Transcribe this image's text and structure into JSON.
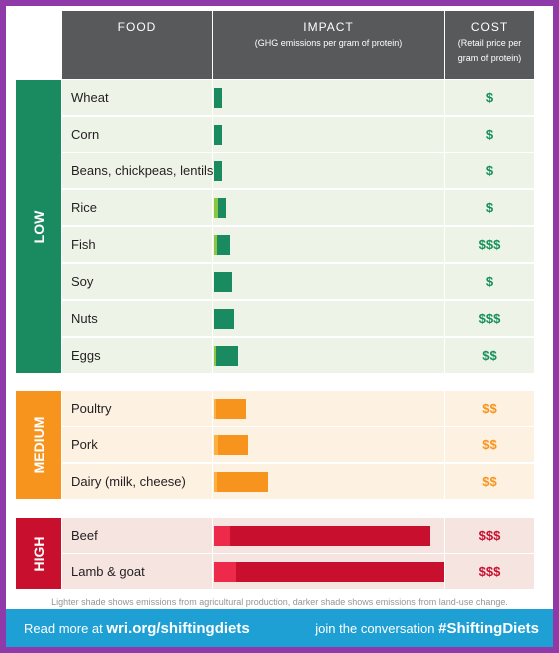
{
  "headers": {
    "food": "FOOD",
    "impact": "IMPACT",
    "impact_sub": "(GHG emissions per gram of protein)",
    "cost": "COST",
    "cost_sub_1": "(Retail price per",
    "cost_sub_2": "gram of protein)"
  },
  "colors": {
    "low": "#1a8a60",
    "low_row": "#eef3e8",
    "low_cost": "#168f5a",
    "low_light": "#8cc63f",
    "medium": "#f7941d",
    "medium_row": "#fdf1e2",
    "medium_light": "#fbb040",
    "high": "#c8102e",
    "high_row": "#f6e4e1",
    "high_light": "#ee2a4b"
  },
  "chart_data": {
    "type": "bar",
    "note": "Lighter shade shows emissions from agricultural production, darker shade shows emissions from land-use change.",
    "groups": [
      {
        "level": "LOW",
        "items": [
          {
            "food": "Wheat",
            "light": 0.0,
            "dark": 1.0,
            "cost": "$"
          },
          {
            "food": "Corn",
            "light": 0.0,
            "dark": 1.0,
            "cost": "$"
          },
          {
            "food": "Beans, chickpeas, lentils",
            "light": 0.0,
            "dark": 1.0,
            "cost": "$"
          },
          {
            "food": "Rice",
            "light": 0.5,
            "dark": 1.0,
            "cost": "$"
          },
          {
            "food": "Fish",
            "light": 0.4,
            "dark": 1.6,
            "cost": "$$$"
          },
          {
            "food": "Soy",
            "light": 0.0,
            "dark": 2.2,
            "cost": "$"
          },
          {
            "food": "Nuts",
            "light": 0.0,
            "dark": 2.5,
            "cost": "$$$"
          },
          {
            "food": "Eggs",
            "light": 0.3,
            "dark": 2.7,
            "cost": "$$"
          }
        ]
      },
      {
        "level": "MEDIUM",
        "items": [
          {
            "food": "Poultry",
            "light": 0.3,
            "dark": 3.7,
            "cost": "$$"
          },
          {
            "food": "Pork",
            "light": 0.5,
            "dark": 3.8,
            "cost": "$$"
          },
          {
            "food": "Dairy (milk, cheese)",
            "light": 0.4,
            "dark": 6.4,
            "cost": "$$"
          }
        ]
      },
      {
        "level": "HIGH",
        "items": [
          {
            "food": "Beef",
            "light": 2.0,
            "dark": 25.0,
            "cost": "$$$"
          },
          {
            "food": "Lamb & goat",
            "light": 2.7,
            "dark": 26.0,
            "cost": "$$$"
          }
        ]
      }
    ]
  },
  "footer": {
    "read_more": "Read more at",
    "url": "wri.org/shiftingdiets",
    "join": "join the conversation",
    "hashtag": "#ShiftingDiets"
  }
}
